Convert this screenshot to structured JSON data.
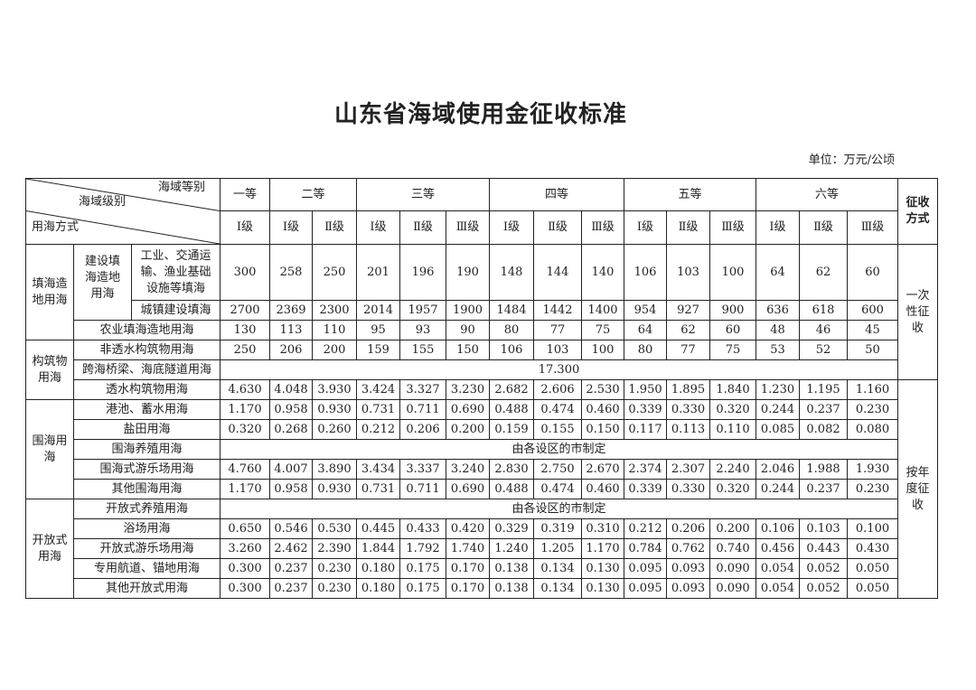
{
  "title": "山东省海域使用金征收标准",
  "unit": "单位：万元/公顷",
  "header": {
    "corner_grade": "海域等别",
    "corner_level": "海域级别",
    "corner_method": "用海方式",
    "grades": [
      "一等",
      "二等",
      "三等",
      "四等",
      "五等",
      "六等"
    ],
    "levels": [
      "Ⅰ级",
      "Ⅰ级",
      "Ⅱ级",
      "Ⅰ级",
      "Ⅱ级",
      "Ⅲ级",
      "Ⅰ级",
      "Ⅱ级",
      "Ⅲ级",
      "Ⅰ级",
      "Ⅱ级",
      "Ⅲ级",
      "Ⅰ级",
      "Ⅱ级",
      "Ⅲ级"
    ],
    "collection": "征收方式"
  },
  "groups": {
    "reclamation": "填海造地用海",
    "construction_reclamation": "建设填海造地用海",
    "structure": "构筑物用海",
    "enclosure": "围海用海",
    "open": "开放式用海"
  },
  "collection_methods": {
    "one_time": "一次性征收",
    "annual": "按年度征收"
  },
  "rows": [
    {
      "label": "工业、交通运输、渔业基础设施等填海",
      "values": [
        "300",
        "258",
        "250",
        "201",
        "196",
        "190",
        "148",
        "144",
        "140",
        "106",
        "103",
        "100",
        "64",
        "62",
        "60"
      ]
    },
    {
      "label": "城镇建设填海",
      "values": [
        "2700",
        "2369",
        "2300",
        "2014",
        "1957",
        "1900",
        "1484",
        "1442",
        "1400",
        "954",
        "927",
        "900",
        "636",
        "618",
        "600"
      ]
    },
    {
      "label": "农业填海造地用海",
      "values": [
        "130",
        "113",
        "110",
        "95",
        "93",
        "90",
        "80",
        "77",
        "75",
        "64",
        "62",
        "60",
        "48",
        "46",
        "45"
      ]
    },
    {
      "label": "非透水构筑物用海",
      "values": [
        "250",
        "206",
        "200",
        "159",
        "155",
        "150",
        "106",
        "103",
        "100",
        "80",
        "77",
        "75",
        "53",
        "52",
        "50"
      ]
    },
    {
      "label": "跨海桥梁、海底隧道用海",
      "merged": "17.300"
    },
    {
      "label": "透水构筑物用海",
      "values": [
        "4.630",
        "4.048",
        "3.930",
        "3.424",
        "3.327",
        "3.230",
        "2.682",
        "2.606",
        "2.530",
        "1.950",
        "1.895",
        "1.840",
        "1.230",
        "1.195",
        "1.160"
      ]
    },
    {
      "label": "港池、蓄水用海",
      "values": [
        "1.170",
        "0.958",
        "0.930",
        "0.731",
        "0.711",
        "0.690",
        "0.488",
        "0.474",
        "0.460",
        "0.339",
        "0.330",
        "0.320",
        "0.244",
        "0.237",
        "0.230"
      ]
    },
    {
      "label": "盐田用海",
      "values": [
        "0.320",
        "0.268",
        "0.260",
        "0.212",
        "0.206",
        "0.200",
        "0.159",
        "0.155",
        "0.150",
        "0.117",
        "0.113",
        "0.110",
        "0.085",
        "0.082",
        "0.080"
      ]
    },
    {
      "label": "围海养殖用海",
      "merged": "由各设区的市制定"
    },
    {
      "label": "围海式游乐场用海",
      "values": [
        "4.760",
        "4.007",
        "3.890",
        "3.434",
        "3.337",
        "3.240",
        "2.830",
        "2.750",
        "2.670",
        "2.374",
        "2.307",
        "2.240",
        "2.046",
        "1.988",
        "1.930"
      ]
    },
    {
      "label": "其他围海用海",
      "values": [
        "1.170",
        "0.958",
        "0.930",
        "0.731",
        "0.711",
        "0.690",
        "0.488",
        "0.474",
        "0.460",
        "0.339",
        "0.330",
        "0.320",
        "0.244",
        "0.237",
        "0.230"
      ]
    },
    {
      "label": "开放式养殖用海",
      "merged": "由各设区的市制定"
    },
    {
      "label": "浴场用海",
      "values": [
        "0.650",
        "0.546",
        "0.530",
        "0.445",
        "0.433",
        "0.420",
        "0.329",
        "0.319",
        "0.310",
        "0.212",
        "0.206",
        "0.200",
        "0.106",
        "0.103",
        "0.100"
      ]
    },
    {
      "label": "开放式游乐场用海",
      "values": [
        "3.260",
        "2.462",
        "2.390",
        "1.844",
        "1.792",
        "1.740",
        "1.240",
        "1.205",
        "1.170",
        "0.784",
        "0.762",
        "0.740",
        "0.456",
        "0.443",
        "0.430"
      ]
    },
    {
      "label": "专用航道、锚地用海",
      "values": [
        "0.300",
        "0.237",
        "0.230",
        "0.180",
        "0.175",
        "0.170",
        "0.138",
        "0.134",
        "0.130",
        "0.095",
        "0.093",
        "0.090",
        "0.054",
        "0.052",
        "0.050"
      ]
    },
    {
      "label": "其他开放式用海",
      "values": [
        "0.300",
        "0.237",
        "0.230",
        "0.180",
        "0.175",
        "0.170",
        "0.138",
        "0.134",
        "0.130",
        "0.095",
        "0.093",
        "0.090",
        "0.054",
        "0.052",
        "0.050"
      ]
    }
  ]
}
